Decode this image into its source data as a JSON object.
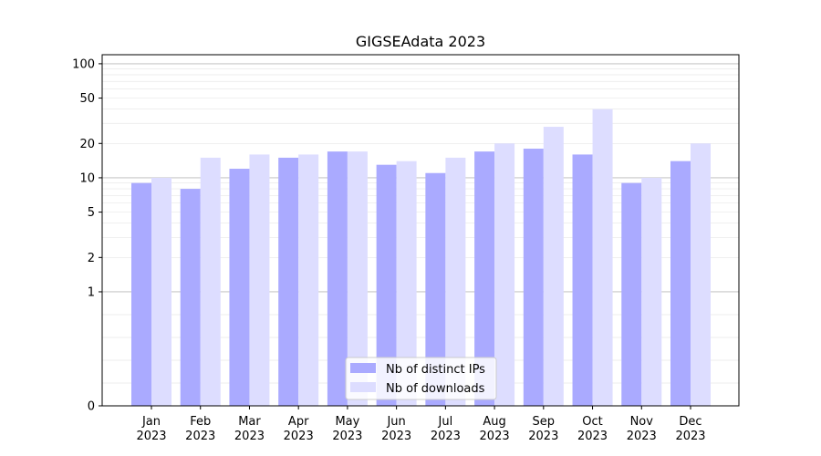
{
  "chart_data": {
    "type": "bar",
    "title": "GIGSEAdata 2023",
    "xlabel": "",
    "ylabel": "",
    "yscale": "symlog",
    "ylim": [
      0,
      120
    ],
    "yticks": [
      0,
      1,
      2,
      5,
      10,
      20,
      50,
      100
    ],
    "categories": [
      [
        "Jan",
        "2023"
      ],
      [
        "Feb",
        "2023"
      ],
      [
        "Mar",
        "2023"
      ],
      [
        "Apr",
        "2023"
      ],
      [
        "May",
        "2023"
      ],
      [
        "Jun",
        "2023"
      ],
      [
        "Jul",
        "2023"
      ],
      [
        "Aug",
        "2023"
      ],
      [
        "Sep",
        "2023"
      ],
      [
        "Oct",
        "2023"
      ],
      [
        "Nov",
        "2023"
      ],
      [
        "Dec",
        "2023"
      ]
    ],
    "series": [
      {
        "name": "Nb of distinct IPs",
        "color": "#aaaaff",
        "values": [
          9,
          8,
          12,
          15,
          17,
          13,
          11,
          17,
          18,
          16,
          9,
          14
        ]
      },
      {
        "name": "Nb of downloads",
        "color": "#ddddff",
        "values": [
          10,
          15,
          16,
          16,
          17,
          14,
          15,
          20,
          28,
          40,
          10,
          20
        ]
      }
    ],
    "grid": true,
    "legend": "lower center"
  }
}
